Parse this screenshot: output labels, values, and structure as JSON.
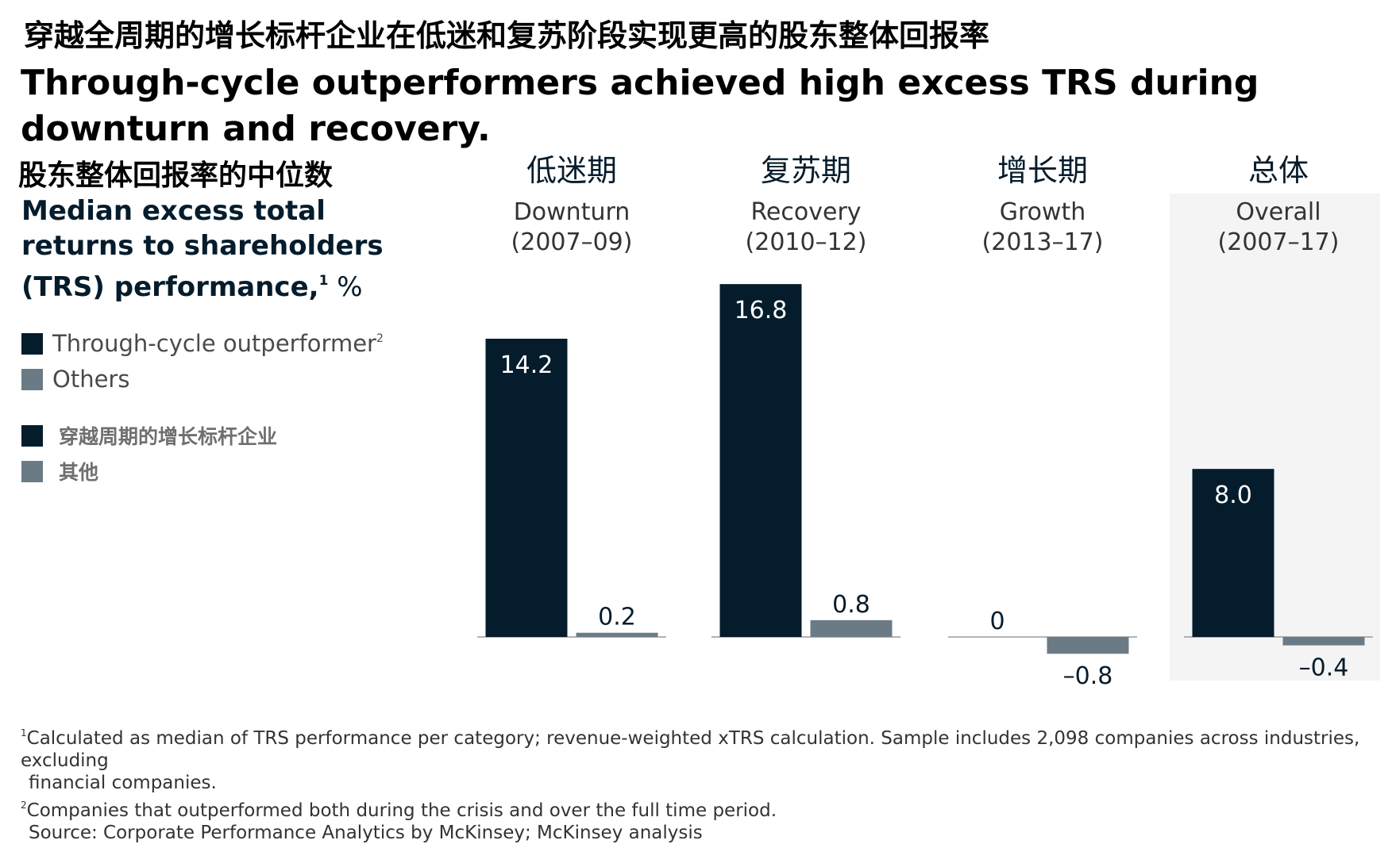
{
  "title_cn": "穿越全周期的增长标杆企业在低迷和复苏阶段实现更高的股东整体回报率",
  "title_en": "Through-cycle outperformers achieved high excess TRS during downturn and recovery.",
  "subtitle_cn": "股东整体回报率的中位数",
  "subtitle_en": {
    "line1": "Median excess total",
    "line2": "returns to shareholders",
    "line3": "(TRS) performance,",
    "sup": "1",
    "unit": " %"
  },
  "legend": {
    "en": [
      {
        "label": "Through-cycle outperformer",
        "sup": "2",
        "color": "#051c2c"
      },
      {
        "label": "Others",
        "color": "#6b7b85"
      }
    ],
    "cn": [
      {
        "label": "穿越周期的增长标杆企业",
        "color": "#051c2c"
      },
      {
        "label": "其他",
        "color": "#6b7b85"
      }
    ]
  },
  "colors": {
    "outperformer": "#051c2c",
    "others": "#6b7b85",
    "overall_background": "#f4f4f4"
  },
  "chart_data": {
    "type": "bar",
    "title": "Median excess total returns to shareholders (TRS) performance, %",
    "categories": [
      {
        "cn": "低迷期",
        "en": "Downturn",
        "period": "(2007–09)"
      },
      {
        "cn": "复苏期",
        "en": "Recovery",
        "period": "(2010–12)"
      },
      {
        "cn": "增长期",
        "en": "Growth",
        "period": "(2013–17)"
      },
      {
        "cn": "总体",
        "en": "Overall",
        "period": "(2007–17)"
      }
    ],
    "series": [
      {
        "name": "Through-cycle outperformer",
        "values": [
          14.2,
          16.8,
          0,
          8.0
        ],
        "labels": [
          "14.2",
          "16.8",
          "0",
          "8.0"
        ]
      },
      {
        "name": "Others",
        "values": [
          0.2,
          0.8,
          -0.8,
          -0.4
        ],
        "labels": [
          "0.2",
          "0.8",
          "–0.8",
          "–0.4"
        ]
      }
    ],
    "xlabel": "",
    "ylabel": "%",
    "ylim": [
      -2,
      18
    ],
    "grid": false,
    "legend_position": "left"
  },
  "footnotes": {
    "note1_sup": "1",
    "note1_line1": "Calculated as median of TRS performance per category; revenue-weighted xTRS calculation. Sample includes 2,098 companies across industries, excluding",
    "note1_line2": "financial companies.",
    "note2_sup": "2",
    "note2": "Companies that outperformed both during the crisis and over the full time period.",
    "source": "Source: Corporate Performance Analytics by McKinsey; McKinsey analysis"
  }
}
